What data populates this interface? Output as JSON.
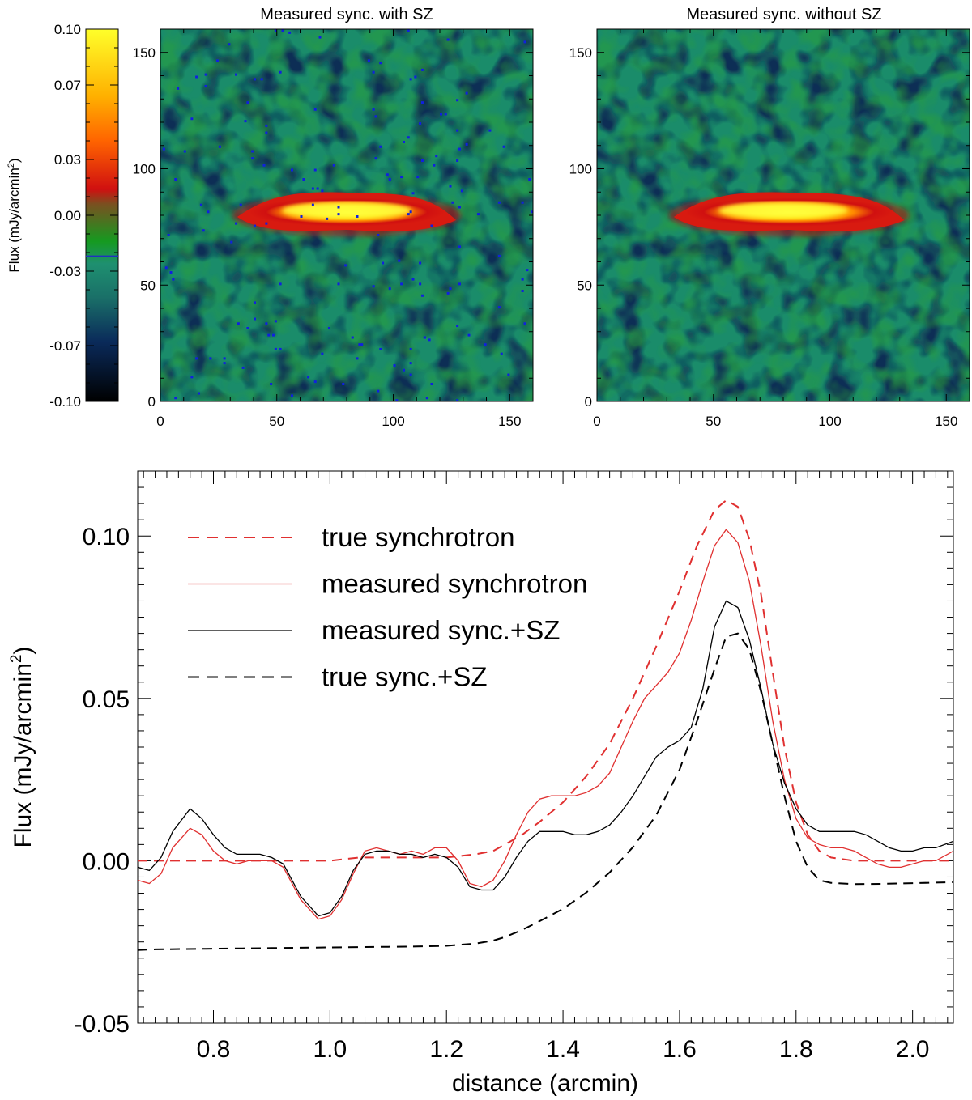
{
  "chart_data": [
    {
      "type": "colorbar",
      "label": "Flux (mJy/arcmin",
      "label_sup": "2",
      "label_tail": ")",
      "ticks": [
        "0.10",
        "0.07",
        "0.03",
        "0.00",
        "-0.03",
        "-0.07",
        "-0.10"
      ],
      "tick_values": [
        0.1,
        0.07,
        0.03,
        0.0,
        -0.03,
        -0.07,
        -0.1
      ],
      "range": [
        -0.1,
        0.1
      ],
      "marker_value": -0.022,
      "colors": {
        "top": "#ffff2a",
        "orange": "#ff8a00",
        "red": "#d01010",
        "brown": "#7a5020",
        "green": "#159a20",
        "teal": "#1e9070",
        "navy": "#0a2a5a",
        "bottom": "#000000",
        "marker": "#2030c0"
      }
    },
    {
      "type": "heatmap",
      "title": "Measured sync. with SZ",
      "xlim": [
        0,
        160
      ],
      "ylim": [
        0,
        160
      ],
      "xticks": [
        "0",
        "50",
        "100",
        "150"
      ],
      "xtick_values": [
        0,
        50,
        100,
        150
      ],
      "yticks": [
        "0",
        "50",
        "100",
        "150"
      ],
      "ytick_values": [
        0,
        50,
        100,
        150
      ],
      "feature": {
        "x_start": 33,
        "x_end": 127,
        "y_center": 80,
        "peak_x": 80
      },
      "scattered_masked_pixels": true
    },
    {
      "type": "heatmap",
      "title": "Measured sync. without SZ",
      "xlim": [
        0,
        160
      ],
      "ylim": [
        0,
        160
      ],
      "xticks": [
        "0",
        "50",
        "100",
        "150"
      ],
      "xtick_values": [
        0,
        50,
        100,
        150
      ],
      "yticks": [
        "0",
        "50",
        "100",
        "150"
      ],
      "ytick_values": [
        0,
        50,
        100,
        150
      ],
      "feature": {
        "x_start": 33,
        "x_end": 132,
        "y_center": 80,
        "peak_x": 80
      },
      "scattered_masked_pixels": false
    },
    {
      "type": "line",
      "xlabel": "distance (arcmin)",
      "ylabel": "Flux (mJy/arcmin",
      "ylabel_sup": "2",
      "ylabel_tail": ")",
      "xlim": [
        0.67,
        2.07
      ],
      "ylim": [
        -0.05,
        0.12
      ],
      "xticks": [
        "0.8",
        "1.0",
        "1.2",
        "1.4",
        "1.6",
        "1.8",
        "2.0"
      ],
      "xtick_values": [
        0.8,
        1.0,
        1.2,
        1.4,
        1.6,
        1.8,
        2.0
      ],
      "yticks": [
        "-0.05",
        "0.00",
        "0.05",
        "0.10"
      ],
      "ytick_values": [
        -0.05,
        0.0,
        0.05,
        0.1
      ],
      "series": [
        {
          "name": "true synchrotron",
          "color": "#e03030",
          "dash": "dashed",
          "x": [
            0.67,
            0.7,
            0.75,
            0.8,
            0.85,
            0.9,
            0.95,
            1.0,
            1.05,
            1.1,
            1.15,
            1.2,
            1.25,
            1.28,
            1.3,
            1.33,
            1.36,
            1.4,
            1.44,
            1.48,
            1.52,
            1.56,
            1.6,
            1.63,
            1.66,
            1.68,
            1.7,
            1.72,
            1.74,
            1.76,
            1.78,
            1.8,
            1.82,
            1.84,
            1.86,
            1.9,
            1.95,
            2.0,
            2.07
          ],
          "y": [
            0.0,
            0.0,
            0.0,
            0.0,
            0.0,
            0.0,
            0.0,
            0.0,
            0.001,
            0.001,
            0.001,
            0.001,
            0.002,
            0.003,
            0.005,
            0.008,
            0.012,
            0.018,
            0.026,
            0.036,
            0.05,
            0.066,
            0.083,
            0.097,
            0.108,
            0.111,
            0.109,
            0.099,
            0.082,
            0.058,
            0.035,
            0.018,
            0.008,
            0.003,
            0.001,
            0.0,
            0.0,
            0.0,
            0.0
          ]
        },
        {
          "name": "measured synchrotron",
          "color": "#e03030",
          "dash": "solid",
          "x": [
            0.67,
            0.69,
            0.71,
            0.73,
            0.76,
            0.78,
            0.8,
            0.82,
            0.84,
            0.86,
            0.88,
            0.9,
            0.92,
            0.95,
            0.98,
            1.0,
            1.02,
            1.04,
            1.06,
            1.08,
            1.1,
            1.12,
            1.14,
            1.16,
            1.18,
            1.2,
            1.22,
            1.24,
            1.26,
            1.28,
            1.3,
            1.32,
            1.34,
            1.36,
            1.38,
            1.4,
            1.42,
            1.44,
            1.46,
            1.48,
            1.5,
            1.52,
            1.54,
            1.56,
            1.58,
            1.6,
            1.62,
            1.64,
            1.66,
            1.68,
            1.7,
            1.72,
            1.74,
            1.76,
            1.78,
            1.8,
            1.82,
            1.84,
            1.86,
            1.88,
            1.9,
            1.92,
            1.94,
            1.96,
            1.98,
            2.0,
            2.02,
            2.04,
            2.07
          ],
          "y": [
            -0.006,
            -0.007,
            -0.004,
            0.004,
            0.01,
            0.008,
            0.003,
            0.0,
            -0.001,
            0.0,
            0.0,
            0.0,
            -0.002,
            -0.012,
            -0.018,
            -0.017,
            -0.012,
            -0.004,
            0.003,
            0.004,
            0.003,
            0.002,
            0.003,
            0.002,
            0.004,
            0.004,
            0.0,
            -0.007,
            -0.008,
            -0.006,
            0.0,
            0.008,
            0.015,
            0.019,
            0.02,
            0.02,
            0.02,
            0.021,
            0.023,
            0.027,
            0.035,
            0.043,
            0.05,
            0.054,
            0.058,
            0.064,
            0.074,
            0.086,
            0.097,
            0.102,
            0.098,
            0.086,
            0.066,
            0.043,
            0.025,
            0.013,
            0.007,
            0.005,
            0.004,
            0.004,
            0.003,
            0.001,
            -0.001,
            -0.002,
            -0.002,
            -0.001,
            0.0,
            0.0,
            0.003
          ]
        },
        {
          "name": "measured sync.+SZ",
          "color": "#000000",
          "dash": "solid",
          "x": [
            0.67,
            0.69,
            0.71,
            0.73,
            0.76,
            0.78,
            0.8,
            0.82,
            0.84,
            0.86,
            0.88,
            0.9,
            0.92,
            0.95,
            0.98,
            1.0,
            1.02,
            1.04,
            1.06,
            1.08,
            1.1,
            1.12,
            1.14,
            1.16,
            1.18,
            1.2,
            1.22,
            1.24,
            1.26,
            1.28,
            1.3,
            1.32,
            1.34,
            1.36,
            1.38,
            1.4,
            1.42,
            1.44,
            1.46,
            1.48,
            1.5,
            1.52,
            1.54,
            1.56,
            1.58,
            1.6,
            1.62,
            1.64,
            1.66,
            1.68,
            1.7,
            1.72,
            1.74,
            1.76,
            1.78,
            1.8,
            1.82,
            1.84,
            1.86,
            1.88,
            1.9,
            1.92,
            1.94,
            1.96,
            1.98,
            2.0,
            2.02,
            2.04,
            2.07
          ],
          "y": [
            -0.002,
            -0.003,
            0.001,
            0.009,
            0.016,
            0.013,
            0.008,
            0.004,
            0.002,
            0.002,
            0.002,
            0.001,
            -0.001,
            -0.011,
            -0.017,
            -0.016,
            -0.011,
            -0.003,
            0.002,
            0.003,
            0.003,
            0.002,
            0.002,
            0.001,
            0.002,
            0.001,
            -0.002,
            -0.008,
            -0.009,
            -0.009,
            -0.005,
            0.001,
            0.006,
            0.009,
            0.009,
            0.009,
            0.008,
            0.008,
            0.009,
            0.011,
            0.015,
            0.02,
            0.026,
            0.032,
            0.035,
            0.037,
            0.041,
            0.053,
            0.072,
            0.08,
            0.078,
            0.068,
            0.053,
            0.036,
            0.024,
            0.016,
            0.011,
            0.009,
            0.009,
            0.009,
            0.009,
            0.008,
            0.006,
            0.004,
            0.003,
            0.003,
            0.004,
            0.004,
            0.006
          ]
        },
        {
          "name": "true sync.+SZ",
          "color": "#000000",
          "dash": "dashed",
          "x": [
            0.67,
            0.7,
            0.75,
            0.8,
            0.85,
            0.9,
            0.95,
            1.0,
            1.05,
            1.1,
            1.15,
            1.2,
            1.25,
            1.28,
            1.3,
            1.33,
            1.36,
            1.4,
            1.44,
            1.48,
            1.52,
            1.56,
            1.6,
            1.63,
            1.66,
            1.68,
            1.7,
            1.72,
            1.74,
            1.76,
            1.78,
            1.8,
            1.82,
            1.84,
            1.86,
            1.9,
            1.95,
            2.0,
            2.07
          ],
          "y": [
            -0.0275,
            -0.0273,
            -0.0272,
            -0.0271,
            -0.027,
            -0.0269,
            -0.0268,
            -0.0267,
            -0.0266,
            -0.0265,
            -0.0264,
            -0.0262,
            -0.0255,
            -0.0246,
            -0.0235,
            -0.0213,
            -0.0186,
            -0.0148,
            -0.0098,
            -0.0036,
            0.0042,
            0.014,
            0.028,
            0.043,
            0.059,
            0.069,
            0.07,
            0.065,
            0.052,
            0.036,
            0.02,
            0.006,
            -0.002,
            -0.006,
            -0.0068,
            -0.0072,
            -0.0071,
            -0.0069,
            -0.0066
          ]
        }
      ]
    }
  ]
}
